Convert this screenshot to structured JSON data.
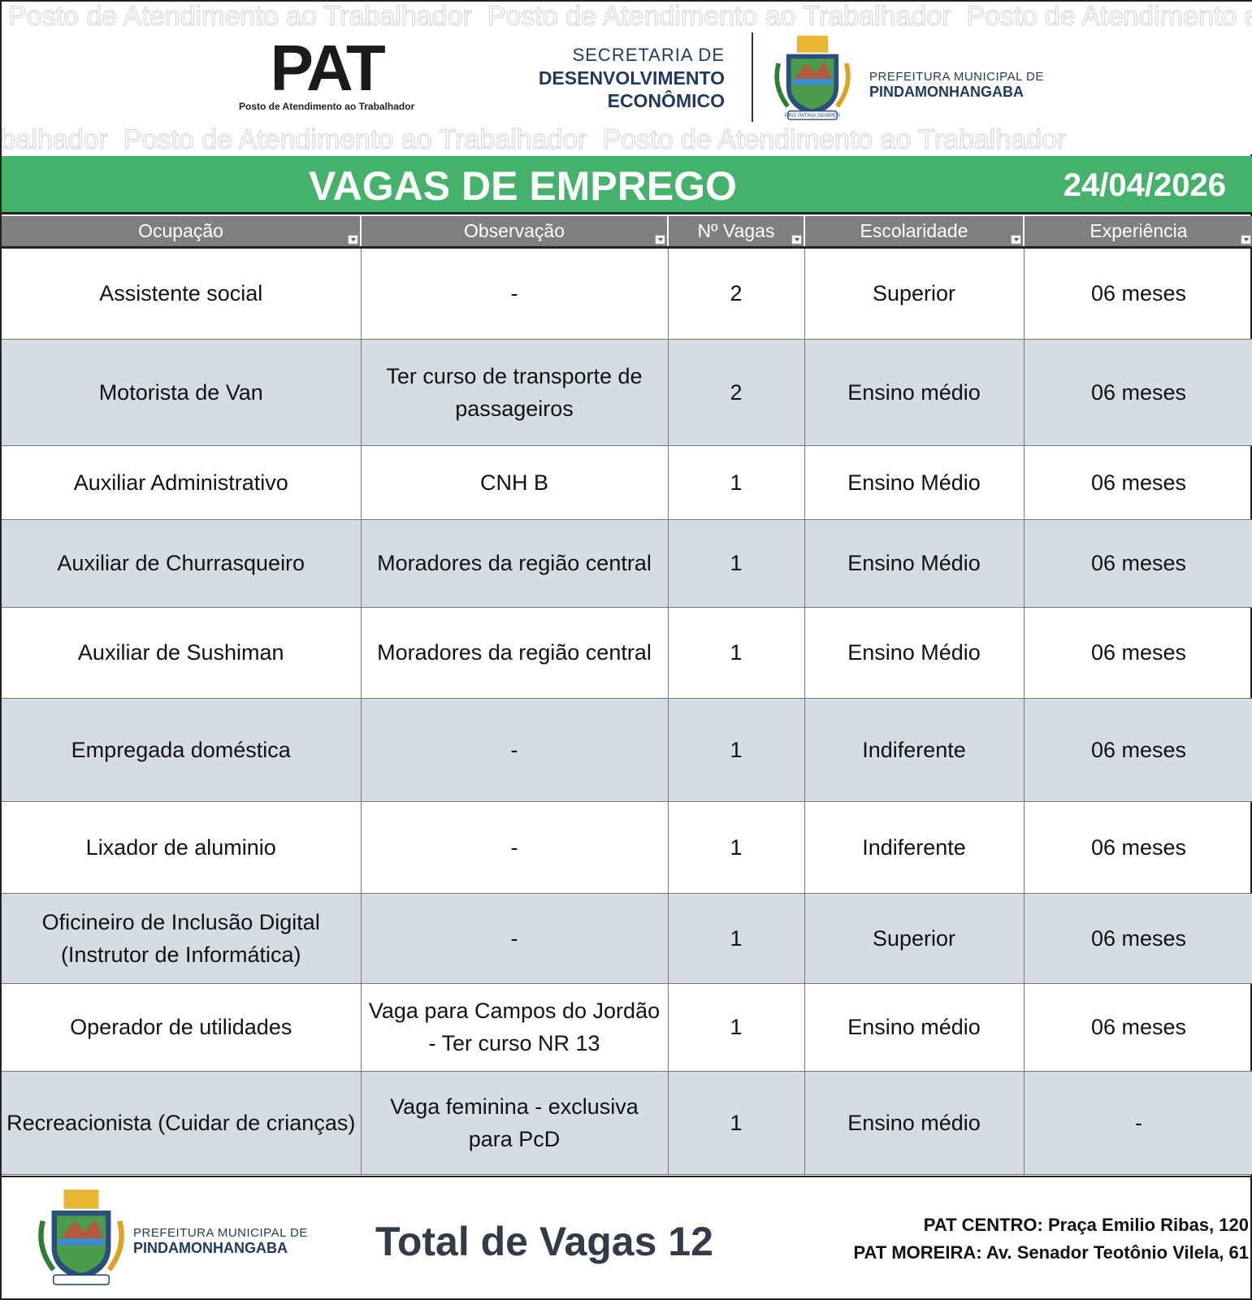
{
  "header": {
    "watermark": "Posto de Atendimento ao Trabalhador",
    "pat_logo": "PAT",
    "pat_subtitle": "Posto de Atendimento ao Trabalhador",
    "secretaria_line1": "SECRETARIA DE",
    "secretaria_line2": "DESENVOLVIMENTO",
    "secretaria_line3": "ECONÔMICO",
    "prefeitura_line1": "PREFEITURA MUNICIPAL DE",
    "prefeitura_line2": "PINDAMONHANGABA",
    "crest_motto": "PRO PATRIA SEMPER"
  },
  "banner": {
    "title": "VAGAS DE EMPREGO",
    "date": "24/04/2026",
    "color": "#44b26b"
  },
  "table": {
    "columns": [
      "Ocupação",
      "Observação",
      "Nº Vagas",
      "Escolaridade",
      "Experiência"
    ],
    "rows": [
      [
        "Assistente social",
        "-",
        "2",
        "Superior",
        "06 meses"
      ],
      [
        "Motorista de Van",
        "Ter curso de transporte de passageiros",
        "2",
        "Ensino médio",
        "06 meses"
      ],
      [
        "Auxiliar Administrativo",
        "CNH B",
        "1",
        "Ensino Médio",
        "06 meses"
      ],
      [
        "Auxiliar de Churrasqueiro",
        "Moradores da região central",
        "1",
        "Ensino Médio",
        "06 meses"
      ],
      [
        "Auxiliar de Sushiman",
        "Moradores da região central",
        "1",
        "Ensino Médio",
        "06 meses"
      ],
      [
        "Empregada doméstica",
        "-",
        "1",
        "Indiferente",
        "06 meses"
      ],
      [
        "Lixador de aluminio",
        "-",
        "1",
        "Indiferente",
        "06 meses"
      ],
      [
        "Oficineiro de Inclusão Digital (Instrutor de Informática)",
        "-",
        "1",
        "Superior",
        "06 meses"
      ],
      [
        "Operador de utilidades",
        "Vaga para Campos do Jordão - Ter curso NR 13",
        "1",
        "Ensino médio",
        "06 meses"
      ],
      [
        "Recreacionista (Cuidar de crianças)",
        "Vaga feminina - exclusiva para PcD",
        "1",
        "Ensino médio",
        "-"
      ]
    ]
  },
  "footer": {
    "prefeitura_line1": "PREFEITURA MUNICIPAL DE",
    "prefeitura_line2": "PINDAMONHANGABA",
    "total_label": "Total de Vagas 12",
    "address_centro": "PAT CENTRO: Praça Emilio Ribas, 120",
    "address_moreira": "PAT MOREIRA: Av. Senador Teotônio Vilela, 61"
  }
}
